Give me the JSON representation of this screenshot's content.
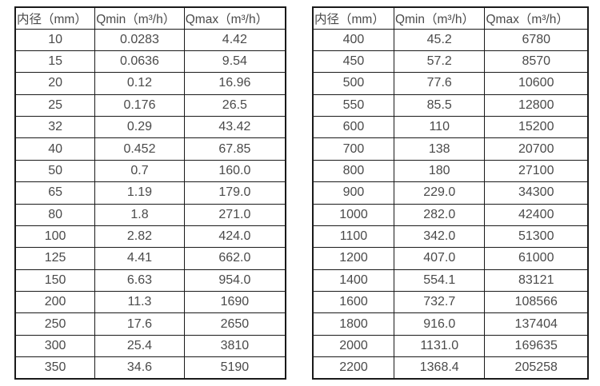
{
  "page": {
    "background_color": "#ffffff",
    "text_color": "#4a4a4a",
    "border_color": "#1a1a1a"
  },
  "tables": [
    {
      "name": "flow-rate-table-small-diameters",
      "headers": [
        "内径（mm）",
        "Qmin（m³/h）",
        "Qmax（m³/h）"
      ],
      "rows": [
        [
          "10",
          "0.0283",
          "4.42"
        ],
        [
          "15",
          "0.0636",
          "9.54"
        ],
        [
          "20",
          "0.12",
          "16.96"
        ],
        [
          "25",
          "0.176",
          "26.5"
        ],
        [
          "32",
          "0.29",
          "43.42"
        ],
        [
          "40",
          "0.452",
          "67.85"
        ],
        [
          "50",
          "0.7",
          "160.0"
        ],
        [
          "65",
          "1.19",
          "179.0"
        ],
        [
          "80",
          "1.8",
          "271.0"
        ],
        [
          "100",
          "2.82",
          "424.0"
        ],
        [
          "125",
          "4.41",
          "662.0"
        ],
        [
          "150",
          "6.63",
          "954.0"
        ],
        [
          "200",
          "11.3",
          "1690"
        ],
        [
          "250",
          "17.6",
          "2650"
        ],
        [
          "300",
          "25.4",
          "3810"
        ],
        [
          "350",
          "34.6",
          "5190"
        ]
      ]
    },
    {
      "name": "flow-rate-table-large-diameters",
      "headers": [
        "内径（mm）",
        "Qmin（m³/h）",
        "Qmax（m³/h）"
      ],
      "rows": [
        [
          "400",
          "45.2",
          "6780"
        ],
        [
          "450",
          "57.2",
          "8570"
        ],
        [
          "500",
          "77.6",
          "10600"
        ],
        [
          "550",
          "85.5",
          "12800"
        ],
        [
          "600",
          "110",
          "15200"
        ],
        [
          "700",
          "138",
          "20700"
        ],
        [
          "800",
          "180",
          "27100"
        ],
        [
          "900",
          "229.0",
          "34300"
        ],
        [
          "1000",
          "282.0",
          "42400"
        ],
        [
          "1100",
          "342.0",
          "51300"
        ],
        [
          "1200",
          "407.0",
          "61000"
        ],
        [
          "1400",
          "554.1",
          "83121"
        ],
        [
          "1600",
          "732.7",
          "108566"
        ],
        [
          "1800",
          "916.0",
          "137404"
        ],
        [
          "2000",
          "1131.0",
          "169635"
        ],
        [
          "2200",
          "1368.4",
          "205258"
        ]
      ]
    }
  ]
}
